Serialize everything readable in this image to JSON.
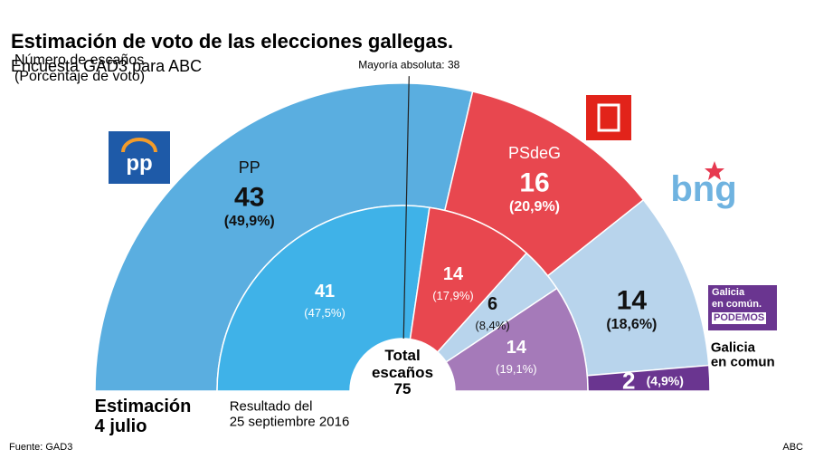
{
  "chart_data": {
    "type": "parliament",
    "title": "Estimación de voto de las elecciones gallegas.",
    "subtitle": "Encuesta GAD3 para ABC",
    "note": "Número de escaños\n(Porcentaje de voto)",
    "categories": [
      "PP",
      "PSdeG",
      null,
      "Galicia\nen comun"
    ],
    "series": [
      {
        "name": "Estimación\n4 julio",
        "values": [
          43,
          16,
          14,
          2
        ],
        "shares": [
          "(49,9%)",
          "(20,9%)",
          "(18,6%)",
          "(4,9%)"
        ],
        "colors": [
          "#5aaee0",
          "#e8474f",
          "#b8d4ec",
          "#6a3590"
        ]
      },
      {
        "name": "Resultado del\n25 septiembre 2016",
        "values": [
          41,
          14,
          6,
          14
        ],
        "shares": [
          "(47,5%)",
          "(17,9%)",
          "(8,4%)",
          "(19,1%)"
        ],
        "colors": [
          "#3fb2e8",
          "#e8474f",
          "#b8d4ec",
          "#a57ab9"
        ]
      }
    ],
    "majority": {
      "value": 38,
      "label": "Mayoría absoluta: 38"
    },
    "total": {
      "value": 75,
      "label": "Total\nescaños\n75"
    },
    "source": "Fuente: GAD3",
    "credit": "ABC"
  },
  "logos": {
    "pp": "pp",
    "bng": "bng",
    "galicia": "Galicia\nen común.",
    "podemos": "PODEMOS"
  }
}
